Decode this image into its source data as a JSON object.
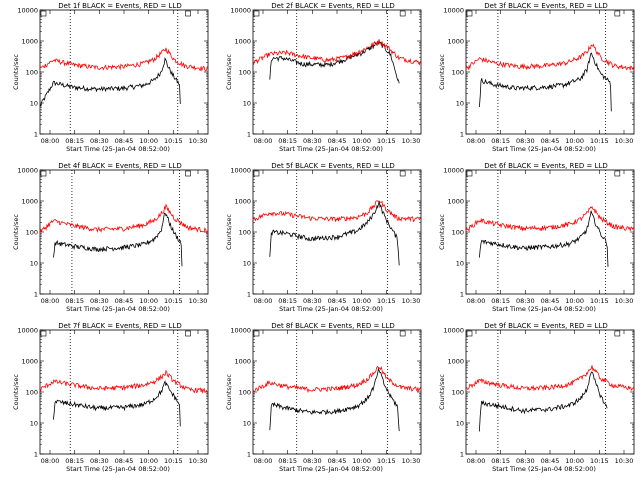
{
  "chart_data": [
    {
      "type": "line",
      "title": "Det 1f BLACK = Events, RED = LLD",
      "xlabel": "Start Time (25-Jan-04 08:52:00)",
      "ylabel": "Counts/sec",
      "x_tick_labels": [
        "08:00",
        "08:15",
        "08:30",
        "08:45",
        "10:00",
        "10:15",
        "10:30"
      ],
      "y_tick_labels": [
        "1",
        "10",
        "100",
        "1000",
        "10000"
      ],
      "y_scale": "log",
      "ylim": [
        1,
        10000
      ],
      "series": [
        {
          "color": "#000000",
          "x": [
            0,
            0.08,
            0.2,
            0.34,
            0.5,
            0.62,
            0.68,
            0.72,
            0.745,
            0.76,
            0.79,
            0.83,
            0.835
          ],
          "y": [
            8,
            45,
            32,
            28,
            30,
            38,
            55,
            100,
            260,
            160,
            80,
            40,
            10
          ]
        },
        {
          "color": "#ff0000",
          "x": [
            0,
            0.08,
            0.2,
            0.34,
            0.5,
            0.62,
            0.68,
            0.72,
            0.75,
            0.8,
            0.86,
            1
          ],
          "y": [
            130,
            240,
            170,
            140,
            150,
            190,
            260,
            400,
            560,
            250,
            160,
            125
          ]
        }
      ],
      "vlines": [
        0.18,
        0.82
      ],
      "markers": [
        0,
        0.86
      ]
    },
    {
      "type": "line",
      "title": "Det 2f BLACK = Events, RED = LLD",
      "xlabel": "Start Time (25-Jan-04 08:52:00)",
      "ylabel": "Counts/sec",
      "x_tick_labels": [
        "08:00",
        "08:15",
        "08:30",
        "08:45",
        "10:00",
        "10:15",
        "10:30"
      ],
      "y_tick_labels": [
        "1",
        "10",
        "100",
        "1000",
        "10000"
      ],
      "y_scale": "log",
      "ylim": [
        1,
        10000
      ],
      "series": [
        {
          "color": "#000000",
          "x": [
            0.1,
            0.11,
            0.18,
            0.3,
            0.45,
            0.55,
            0.65,
            0.72,
            0.75,
            0.78,
            0.82,
            0.87
          ],
          "y": [
            60,
            280,
            280,
            180,
            170,
            260,
            420,
            700,
            900,
            650,
            350,
            40
          ]
        },
        {
          "color": "#ff0000",
          "x": [
            0,
            0.1,
            0.2,
            0.32,
            0.45,
            0.55,
            0.65,
            0.72,
            0.75,
            0.8,
            0.87,
            1
          ],
          "y": [
            200,
            380,
            420,
            300,
            240,
            300,
            500,
            800,
            1000,
            650,
            280,
            200
          ]
        }
      ],
      "vlines": [
        0.26,
        0.8
      ],
      "markers": [
        0,
        0.87
      ]
    },
    {
      "type": "line",
      "title": "Det 3f BLACK = Events, RED = LLD",
      "xlabel": "Start Time (25-Jan-04 08:52:00)",
      "ylabel": "Counts/sec",
      "x_tick_labels": [
        "08:00",
        "08:15",
        "08:30",
        "08:45",
        "10:00",
        "10:15",
        "10:30"
      ],
      "y_tick_labels": [
        "1",
        "10",
        "100",
        "1000",
        "10000"
      ],
      "y_scale": "log",
      "ylim": [
        1,
        10000
      ],
      "series": [
        {
          "color": "#000000",
          "x": [
            0.08,
            0.09,
            0.16,
            0.3,
            0.45,
            0.58,
            0.68,
            0.72,
            0.745,
            0.77,
            0.8,
            0.86,
            0.865
          ],
          "y": [
            8,
            55,
            40,
            30,
            32,
            38,
            60,
            120,
            420,
            200,
            90,
            45,
            6
          ]
        },
        {
          "color": "#ff0000",
          "x": [
            0,
            0.08,
            0.18,
            0.32,
            0.48,
            0.6,
            0.68,
            0.72,
            0.75,
            0.8,
            0.88,
            1
          ],
          "y": [
            130,
            270,
            190,
            150,
            160,
            200,
            300,
            450,
            800,
            300,
            160,
            130
          ]
        }
      ],
      "vlines": [
        0.19,
        0.83
      ],
      "markers": [
        0,
        0.88
      ]
    },
    {
      "type": "line",
      "title": "Det 4f BLACK = Events, RED = LLD",
      "xlabel": "Start Time (25-Jan-04 08:52:00)",
      "ylabel": "Counts/sec",
      "x_tick_labels": [
        "08:00",
        "08:15",
        "08:30",
        "08:45",
        "10:00",
        "10:15",
        "10:30"
      ],
      "y_tick_labels": [
        "1",
        "10",
        "100",
        "1000",
        "10000"
      ],
      "y_scale": "log",
      "ylim": [
        1,
        10000
      ],
      "series": [
        {
          "color": "#000000",
          "x": [
            0.08,
            0.09,
            0.2,
            0.34,
            0.5,
            0.62,
            0.68,
            0.72,
            0.745,
            0.77,
            0.8,
            0.84,
            0.845
          ],
          "y": [
            15,
            45,
            35,
            28,
            32,
            40,
            60,
            110,
            450,
            200,
            90,
            45,
            8
          ]
        },
        {
          "color": "#ff0000",
          "x": [
            0,
            0.08,
            0.2,
            0.34,
            0.5,
            0.62,
            0.68,
            0.72,
            0.75,
            0.8,
            0.88,
            1
          ],
          "y": [
            100,
            230,
            160,
            120,
            130,
            170,
            240,
            380,
            650,
            280,
            140,
            110
          ]
        }
      ],
      "vlines": [
        0.19,
        0.83
      ],
      "markers": [
        0,
        0.86
      ]
    },
    {
      "type": "line",
      "title": "Det 5f BLACK = Events, RED = LLD",
      "xlabel": "Start Time (25-Jan-04 08:52:00)",
      "ylabel": "Counts/sec",
      "x_tick_labels": [
        "08:00",
        "08:15",
        "08:30",
        "08:45",
        "10:00",
        "10:15",
        "10:30"
      ],
      "y_tick_labels": [
        "1",
        "10",
        "100",
        "1000",
        "10000"
      ],
      "y_scale": "log",
      "ylim": [
        1,
        10000
      ],
      "series": [
        {
          "color": "#000000",
          "x": [
            0.1,
            0.11,
            0.2,
            0.34,
            0.5,
            0.62,
            0.68,
            0.72,
            0.75,
            0.78,
            0.82,
            0.86,
            0.87
          ],
          "y": [
            15,
            100,
            90,
            60,
            70,
            110,
            200,
            400,
            900,
            350,
            140,
            60,
            10
          ]
        },
        {
          "color": "#ff0000",
          "x": [
            0,
            0.1,
            0.2,
            0.34,
            0.5,
            0.62,
            0.68,
            0.72,
            0.75,
            0.8,
            0.86,
            1
          ],
          "y": [
            250,
            420,
            380,
            280,
            260,
            300,
            420,
            700,
            1100,
            500,
            280,
            260
          ]
        }
      ],
      "vlines": [
        0.26,
        0.8
      ],
      "markers": [
        0,
        0.87
      ]
    },
    {
      "type": "line",
      "title": "Det 6f BLACK = Events, RED = LLD",
      "xlabel": "Start Time (25-Jan-04 08:52:00)",
      "ylabel": "Counts/sec",
      "x_tick_labels": [
        "08:00",
        "08:15",
        "08:30",
        "08:45",
        "10:00",
        "10:15",
        "10:30"
      ],
      "y_tick_labels": [
        "1",
        "10",
        "100",
        "1000",
        "10000"
      ],
      "y_scale": "log",
      "ylim": [
        1,
        10000
      ],
      "series": [
        {
          "color": "#000000",
          "x": [
            0.08,
            0.09,
            0.2,
            0.34,
            0.5,
            0.62,
            0.68,
            0.72,
            0.745,
            0.77,
            0.8,
            0.84,
            0.845
          ],
          "y": [
            15,
            50,
            40,
            30,
            34,
            42,
            65,
            120,
            420,
            200,
            90,
            45,
            8
          ]
        },
        {
          "color": "#ff0000",
          "x": [
            0,
            0.08,
            0.2,
            0.34,
            0.5,
            0.62,
            0.68,
            0.72,
            0.75,
            0.8,
            0.88,
            1
          ],
          "y": [
            110,
            240,
            170,
            130,
            140,
            180,
            260,
            400,
            650,
            280,
            150,
            120
          ]
        }
      ],
      "vlines": [
        0.19,
        0.83
      ],
      "markers": [
        0,
        0.88
      ]
    },
    {
      "type": "line",
      "title": "Det 7f BLACK = Events, RED = LLD",
      "xlabel": "Start Time (25-Jan-04 08:52:00)",
      "ylabel": "Counts/sec",
      "x_tick_labels": [
        "08:00",
        "08:15",
        "08:30",
        "08:45",
        "10:00",
        "10:15",
        "10:30"
      ],
      "y_tick_labels": [
        "1",
        "10",
        "100",
        "1000",
        "10000"
      ],
      "y_scale": "log",
      "ylim": [
        1,
        10000
      ],
      "series": [
        {
          "color": "#000000",
          "x": [
            0.08,
            0.09,
            0.2,
            0.34,
            0.5,
            0.62,
            0.68,
            0.72,
            0.745,
            0.77,
            0.8,
            0.83,
            0.835
          ],
          "y": [
            15,
            50,
            40,
            30,
            32,
            40,
            60,
            100,
            200,
            120,
            70,
            40,
            8
          ]
        },
        {
          "color": "#ff0000",
          "x": [
            0,
            0.08,
            0.2,
            0.34,
            0.5,
            0.62,
            0.68,
            0.72,
            0.75,
            0.8,
            0.88,
            1
          ],
          "y": [
            120,
            220,
            170,
            130,
            140,
            170,
            220,
            300,
            420,
            220,
            120,
            110
          ]
        }
      ],
      "vlines": [
        0.18,
        0.82
      ],
      "markers": [
        0,
        0.86
      ]
    },
    {
      "type": "line",
      "title": "Det 8f BLACK = Events, RED = LLD",
      "xlabel": "Start Time (25-Jan-04 08:52:00)",
      "ylabel": "Counts/sec",
      "x_tick_labels": [
        "08:00",
        "08:15",
        "08:30",
        "08:45",
        "10:00",
        "10:15",
        "10:30"
      ],
      "y_tick_labels": [
        "1",
        "10",
        "100",
        "1000",
        "10000"
      ],
      "y_scale": "log",
      "ylim": [
        1,
        10000
      ],
      "series": [
        {
          "color": "#000000",
          "x": [
            0.1,
            0.11,
            0.2,
            0.34,
            0.5,
            0.62,
            0.68,
            0.72,
            0.75,
            0.78,
            0.82,
            0.86,
            0.87
          ],
          "y": [
            5,
            40,
            30,
            22,
            24,
            35,
            60,
            150,
            550,
            180,
            70,
            35,
            5
          ]
        },
        {
          "color": "#ff0000",
          "x": [
            0,
            0.1,
            0.2,
            0.34,
            0.5,
            0.62,
            0.68,
            0.72,
            0.75,
            0.8,
            0.88,
            1
          ],
          "y": [
            110,
            200,
            150,
            120,
            130,
            170,
            260,
            420,
            700,
            260,
            140,
            120
          ]
        }
      ],
      "vlines": [
        0.26,
        0.8
      ],
      "markers": [
        0,
        0.87
      ]
    },
    {
      "type": "line",
      "title": "Det 9f BLACK = Events, RED = LLD",
      "xlabel": "Start Time (25-Jan-04 08:52:00)",
      "ylabel": "Counts/sec",
      "x_tick_labels": [
        "08:00",
        "08:15",
        "08:30",
        "08:45",
        "10:00",
        "10:15",
        "10:30"
      ],
      "y_tick_labels": [
        "1",
        "10",
        "100",
        "1000",
        "10000"
      ],
      "y_scale": "log",
      "ylim": [
        1,
        10000
      ],
      "series": [
        {
          "color": "#000000",
          "x": [
            0.08,
            0.09,
            0.2,
            0.34,
            0.5,
            0.62,
            0.68,
            0.72,
            0.745,
            0.77,
            0.8,
            0.84
          ],
          "y": [
            6,
            45,
            35,
            25,
            28,
            38,
            60,
            120,
            500,
            200,
            80,
            30
          ]
        },
        {
          "color": "#ff0000",
          "x": [
            0,
            0.08,
            0.2,
            0.34,
            0.5,
            0.62,
            0.68,
            0.72,
            0.75,
            0.8,
            0.88,
            1
          ],
          "y": [
            130,
            230,
            170,
            130,
            140,
            180,
            270,
            420,
            650,
            280,
            160,
            130
          ]
        }
      ],
      "vlines": [
        0.19,
        0.83
      ],
      "markers": [
        0,
        0.88
      ]
    }
  ]
}
